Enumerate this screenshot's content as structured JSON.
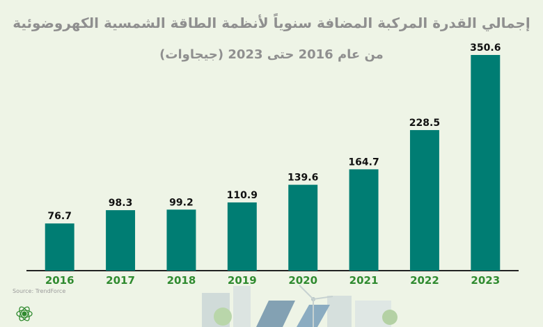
{
  "chart_data": {
    "type": "bar",
    "title": "إجمالي القدرة المركبة المضافة سنوياً لأنظمة الطاقة الشمسية الكهروضوئية",
    "subtitle": "من عام 2016 حتى 2023 (جيجاوات)",
    "categories": [
      "2016",
      "2017",
      "2018",
      "2019",
      "2020",
      "2021",
      "2022",
      "2023"
    ],
    "values": [
      76.7,
      98.3,
      99.2,
      110.9,
      139.6,
      164.7,
      228.5,
      350.6
    ],
    "value_labels": [
      "76.7",
      "98.3",
      "99.2",
      "110.9",
      "139.6",
      "164.7",
      "228.5",
      "350.6"
    ],
    "xlabel": "",
    "ylabel": "",
    "ylim": [
      0,
      350.6
    ],
    "grid": false,
    "legend": "none",
    "colors": {
      "bar": "#007d73",
      "axis": "#222222",
      "year_labels": "#2f8a2f",
      "title": "#8f8f8f",
      "background": "#eef4e6"
    },
    "source": "Source: TrendForce"
  }
}
